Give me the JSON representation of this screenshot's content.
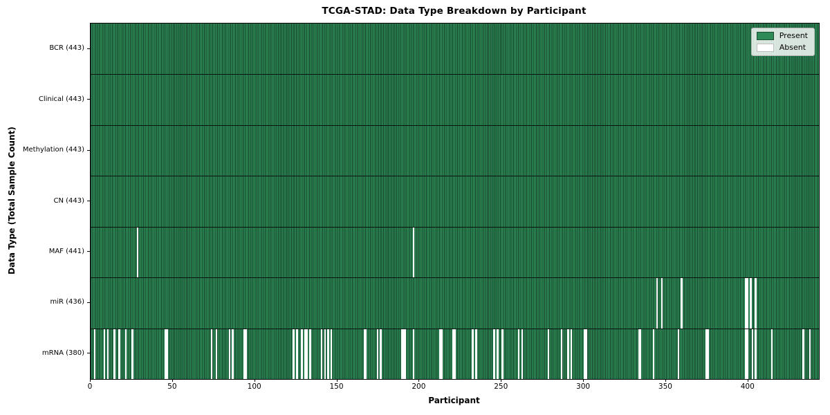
{
  "title": "TCGA-STAD: Data Type Breakdown by Participant",
  "xlabel": "Participant",
  "ylabel": "Data Type (Total Sample Count)",
  "legend": {
    "present_label": "Present",
    "absent_label": "Absent",
    "position": "upper right"
  },
  "colors": {
    "present": "#2e8b57",
    "present_edge": "#17402a",
    "absent": "#ffffff",
    "separator": "#000000"
  },
  "chart_data": {
    "type": "heatmap",
    "title": "TCGA-STAD: Data Type Breakdown by Participant",
    "xlabel": "Participant",
    "ylabel": "Data Type (Total Sample Count)",
    "x_ticks": [
      0,
      50,
      100,
      150,
      200,
      250,
      300,
      350,
      400
    ],
    "xlim": [
      0,
      443
    ],
    "n_participants": 443,
    "grid": false,
    "legend_position": "upper right",
    "legend_entries": [
      "Present",
      "Absent"
    ],
    "rows": [
      {
        "name": "BCR",
        "label": "BCR (443)",
        "total": 443,
        "absent": []
      },
      {
        "name": "Clinical",
        "label": "Clinical (443)",
        "total": 443,
        "absent": []
      },
      {
        "name": "Methylation",
        "label": "Methylation (443)",
        "total": 443,
        "absent": []
      },
      {
        "name": "CN",
        "label": "CN (443)",
        "total": 443,
        "absent": []
      },
      {
        "name": "MAF",
        "label": "MAF (441)",
        "total": 441,
        "absent": [
          28,
          196
        ]
      },
      {
        "name": "miR",
        "label": "miR (436)",
        "total": 436,
        "absent": [
          344,
          347,
          359,
          398,
          399,
          401,
          404
        ]
      },
      {
        "name": "mRNA",
        "label": "mRNA (380)",
        "total": 380,
        "absent": [
          2,
          8,
          10,
          14,
          17,
          21,
          25,
          45,
          46,
          73,
          76,
          84,
          86,
          93,
          94,
          123,
          125,
          128,
          130,
          131,
          133,
          140,
          142,
          144,
          146,
          166,
          167,
          174,
          176,
          189,
          190,
          191,
          196,
          212,
          213,
          220,
          221,
          232,
          234,
          245,
          247,
          250,
          260,
          262,
          278,
          286,
          290,
          292,
          300,
          301,
          333,
          334,
          342,
          357,
          374,
          375,
          398,
          399,
          402,
          404,
          414,
          433,
          437
        ]
      }
    ]
  }
}
